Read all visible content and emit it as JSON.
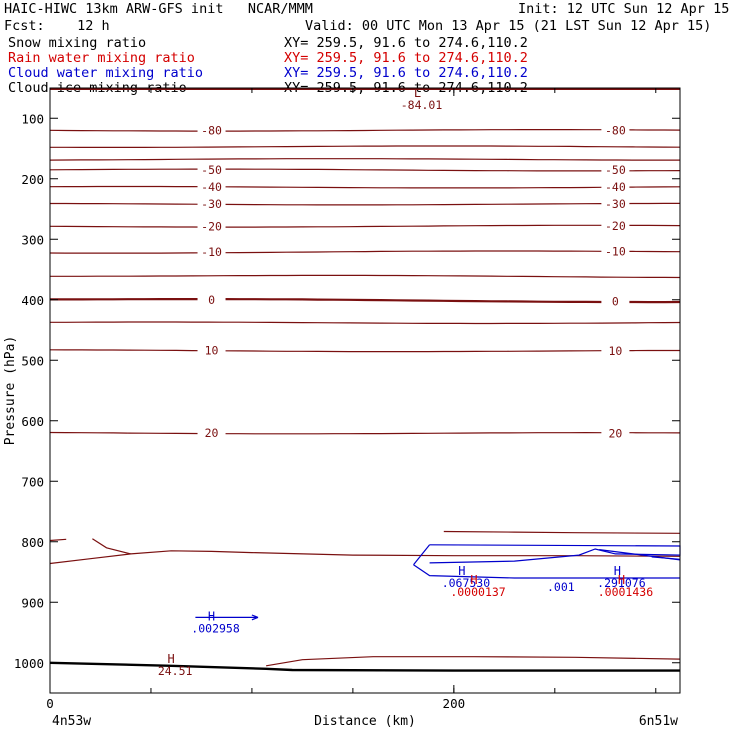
{
  "header": {
    "title_left": "HAIC-HIWC 13km ARW-GFS init   NCAR/MMM",
    "init": "Init: 12 UTC Sun 12 Apr 15",
    "fcst": "Fcst:    12 h",
    "valid": "Valid: 00 UTC Mon 13 Apr 15 (21 LST Sun 12 Apr 15)",
    "fields": [
      {
        "name": "Snow mixing ratio",
        "xy": "XY= 259.5, 91.6 to 274.6,110.2",
        "color": "#000000"
      },
      {
        "name": "Rain water mixing ratio",
        "xy": "XY= 259.5, 91.6 to 274.6,110.2",
        "color": "#d40000"
      },
      {
        "name": "Cloud water mixing ratio",
        "xy": "XY= 259.5, 91.6 to 274.6,110.2",
        "color": "#0000cc"
      },
      {
        "name": "Cloud ice mixing ratio",
        "xy": "XY= 259.5, 91.6 to 274.6,110.2",
        "color": "#000000"
      }
    ]
  },
  "chart_data": {
    "type": "contour-cross-section",
    "xlabel": "Distance (km)",
    "ylabel": "Pressure (hPa)",
    "x_ticks": [
      "0",
      "200"
    ],
    "x_range": [
      0,
      312
    ],
    "x_end_labels": {
      "left": "4n53w",
      "right": "6n51w"
    },
    "y_ticks": [
      100,
      200,
      300,
      400,
      500,
      600,
      700,
      800,
      900,
      1000
    ],
    "y_range": [
      1050,
      50
    ],
    "colors": {
      "temperature": "#7a1010",
      "cloud_water": "#0000cc",
      "rain": "#d40000",
      "ground": "#000000"
    },
    "isotherms": [
      {
        "value": -80,
        "y": [
          120,
          120
        ],
        "labels": [
          "-80",
          "-80"
        ]
      },
      {
        "value": -70,
        "y": [
          147,
          147
        ]
      },
      {
        "value": -60,
        "y": [
          168,
          168
        ]
      },
      {
        "value": -50,
        "y": [
          185,
          186
        ],
        "labels": [
          "-50",
          "-50"
        ]
      },
      {
        "value": -40,
        "y": [
          214,
          214
        ],
        "labels": [
          "-40",
          "-40"
        ]
      },
      {
        "value": -30,
        "y": [
          242,
          242
        ],
        "labels": [
          "-30",
          "-30"
        ]
      },
      {
        "value": -20,
        "y": [
          279,
          278
        ],
        "labels": [
          "-20",
          "-20"
        ]
      },
      {
        "value": -10,
        "y": [
          322,
          320
        ],
        "labels": [
          "-10",
          "-10"
        ]
      },
      {
        "value": -5,
        "y": [
          360,
          362
        ]
      },
      {
        "value": 0,
        "y": [
          399,
          403
        ],
        "labels": [
          "0",
          "0"
        ]
      },
      {
        "value": 5,
        "y": [
          438,
          438
        ]
      },
      {
        "value": 10,
        "y": [
          484,
          485
        ],
        "labels": [
          "10",
          "10"
        ]
      },
      {
        "value": 20,
        "y": [
          620,
          621
        ],
        "labels": [
          "20",
          "20"
        ]
      }
    ],
    "extrema": [
      {
        "kind": "L",
        "value": "-84.01",
        "x": 182,
        "p": 65,
        "color": "#7a1010"
      },
      {
        "kind": "H",
        "value": "24.51",
        "x": 60,
        "p": 1000,
        "color": "#7a1010"
      },
      {
        "kind": "H",
        "value": ".002958",
        "x": 80,
        "p": 930,
        "color": "#0000cc"
      },
      {
        "kind": "H",
        "value": ".067530",
        "x": 204,
        "p": 855,
        "color": "#0000cc"
      },
      {
        "kind": "H",
        "value": ".291076",
        "x": 281,
        "p": 855,
        "color": "#0000cc"
      },
      {
        "kind": "H",
        "value": ".0000137",
        "x": 210,
        "p": 870,
        "color": "#d40000"
      },
      {
        "kind": "H",
        "value": ".0001436",
        "x": 283,
        "p": 870,
        "color": "#d40000"
      }
    ],
    "contour_labels": [
      {
        "text": ".001",
        "x": 253,
        "p": 875,
        "color": "#0000cc"
      }
    ]
  }
}
